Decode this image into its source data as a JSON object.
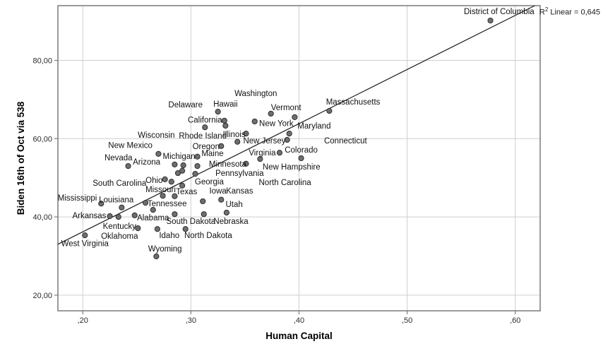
{
  "chart_data": {
    "type": "scatter",
    "title": "",
    "xlabel": "Human Capital",
    "ylabel": "Biden 16th of Oct via 538",
    "xlim": [
      0.177,
      0.623
    ],
    "ylim": [
      16.0,
      94.0
    ],
    "grid": true,
    "legend": "none",
    "x_ticks": {
      "values": [
        0.2,
        0.3,
        0.4,
        0.5,
        0.6
      ],
      "labels": [
        ",20",
        ",30",
        ",40",
        ",50",
        ",60"
      ]
    },
    "y_ticks": {
      "values": [
        20,
        40,
        60,
        80
      ],
      "labels": [
        "20,00",
        "40,00",
        "60,00",
        "80,00"
      ]
    },
    "r2": {
      "prefix": "R",
      "sup": "2",
      "rest": " Linear = 0,645"
    },
    "fit_line": {
      "x1": 0.177,
      "y1": 33.0,
      "x2": 0.618,
      "y2": 94.0
    },
    "points": [
      [
        0.577,
        90.2
      ],
      [
        0.428,
        67.1
      ],
      [
        0.325,
        66.9
      ],
      [
        0.374,
        66.4
      ],
      [
        0.396,
        65.5
      ],
      [
        0.331,
        64.6
      ],
      [
        0.359,
        64.4
      ],
      [
        0.332,
        63.3
      ],
      [
        0.313,
        62.9
      ],
      [
        0.351,
        61.3
      ],
      [
        0.391,
        61.3
      ],
      [
        0.389,
        59.7
      ],
      [
        0.343,
        59.2
      ],
      [
        0.328,
        58.1
      ],
      [
        0.27,
        56.1
      ],
      [
        0.306,
        55.4
      ],
      [
        0.382,
        56.4
      ],
      [
        0.364,
        54.8
      ],
      [
        0.402,
        55.0
      ],
      [
        0.351,
        53.6
      ],
      [
        0.242,
        53.0
      ],
      [
        0.285,
        53.4
      ],
      [
        0.293,
        53.2
      ],
      [
        0.306,
        53.0
      ],
      [
        0.288,
        51.2
      ],
      [
        0.292,
        51.8
      ],
      [
        0.304,
        51.0
      ],
      [
        0.276,
        49.6
      ],
      [
        0.282,
        49.0
      ],
      [
        0.292,
        48.0
      ],
      [
        0.274,
        45.4
      ],
      [
        0.285,
        45.3
      ],
      [
        0.311,
        44.0
      ],
      [
        0.328,
        44.4
      ],
      [
        0.258,
        43.6
      ],
      [
        0.265,
        41.8
      ],
      [
        0.217,
        43.4
      ],
      [
        0.236,
        42.4
      ],
      [
        0.225,
        40.2
      ],
      [
        0.233,
        40.0
      ],
      [
        0.248,
        40.4
      ],
      [
        0.285,
        40.7
      ],
      [
        0.312,
        40.7
      ],
      [
        0.333,
        41.1
      ],
      [
        0.251,
        37.1
      ],
      [
        0.269,
        36.9
      ],
      [
        0.295,
        36.9
      ],
      [
        0.202,
        35.3
      ],
      [
        0.268,
        29.9
      ]
    ],
    "state_labels": [
      {
        "text": "District of Columbia",
        "x": 0.585,
        "y": 92.6
      },
      {
        "text": "Massachusetts",
        "x": 0.45,
        "y": 69.4
      },
      {
        "text": "Washington",
        "x": 0.36,
        "y": 71.6
      },
      {
        "text": "Delaware",
        "x": 0.295,
        "y": 68.7
      },
      {
        "text": "Hawaii",
        "x": 0.332,
        "y": 68.9
      },
      {
        "text": "Vermont",
        "x": 0.388,
        "y": 68.0
      },
      {
        "text": "New York",
        "x": 0.379,
        "y": 63.9
      },
      {
        "text": "California",
        "x": 0.313,
        "y": 64.8
      },
      {
        "text": "Maryland",
        "x": 0.414,
        "y": 63.3
      },
      {
        "text": "Wisconsin",
        "x": 0.268,
        "y": 61.0
      },
      {
        "text": "Rhode Island",
        "x": 0.311,
        "y": 60.8
      },
      {
        "text": "Illinois",
        "x": 0.34,
        "y": 61.1
      },
      {
        "text": "New Jersey",
        "x": 0.368,
        "y": 59.5
      },
      {
        "text": "Connecticut",
        "x": 0.443,
        "y": 59.5
      },
      {
        "text": "New Mexico",
        "x": 0.244,
        "y": 58.3
      },
      {
        "text": "Oregon",
        "x": 0.314,
        "y": 58.1
      },
      {
        "text": "Virginia",
        "x": 0.366,
        "y": 56.4
      },
      {
        "text": "Colorado",
        "x": 0.402,
        "y": 57.2
      },
      {
        "text": "Nevada",
        "x": 0.233,
        "y": 55.2
      },
      {
        "text": "Arizona",
        "x": 0.259,
        "y": 54.1
      },
      {
        "text": "Michigan",
        "x": 0.289,
        "y": 55.5
      },
      {
        "text": "Maine",
        "x": 0.32,
        "y": 56.3
      },
      {
        "text": "Minnesota",
        "x": 0.334,
        "y": 53.6
      },
      {
        "text": "New Hampshire",
        "x": 0.393,
        "y": 52.8
      },
      {
        "text": "Pennsylvania",
        "x": 0.345,
        "y": 51.2
      },
      {
        "text": "North Carolina",
        "x": 0.387,
        "y": 48.9
      },
      {
        "text": "South Carolina",
        "x": 0.234,
        "y": 48.7
      },
      {
        "text": "Ohio",
        "x": 0.266,
        "y": 49.4
      },
      {
        "text": "Georgia",
        "x": 0.317,
        "y": 49.0
      },
      {
        "text": "Missouri",
        "x": 0.272,
        "y": 47.1
      },
      {
        "text": "Texas",
        "x": 0.296,
        "y": 46.5
      },
      {
        "text": "Iowa",
        "x": 0.325,
        "y": 46.7
      },
      {
        "text": "Kansas",
        "x": 0.345,
        "y": 46.7
      },
      {
        "text": "Mississippi",
        "x": 0.195,
        "y": 44.9
      },
      {
        "text": "Louisiana",
        "x": 0.231,
        "y": 44.4
      },
      {
        "text": "Tennessee",
        "x": 0.278,
        "y": 43.4
      },
      {
        "text": "Utah",
        "x": 0.34,
        "y": 43.3
      },
      {
        "text": "Arkansas",
        "x": 0.206,
        "y": 40.4
      },
      {
        "text": "Alabama",
        "x": 0.265,
        "y": 39.8
      },
      {
        "text": "South Dakota",
        "x": 0.3,
        "y": 38.9
      },
      {
        "text": "Nebraska",
        "x": 0.337,
        "y": 38.9
      },
      {
        "text": "Kentucky",
        "x": 0.234,
        "y": 37.7
      },
      {
        "text": "Oklahoma",
        "x": 0.234,
        "y": 35.1
      },
      {
        "text": "Idaho",
        "x": 0.28,
        "y": 35.3
      },
      {
        "text": "North Dakota",
        "x": 0.316,
        "y": 35.3
      },
      {
        "text": "West Virginia",
        "x": 0.202,
        "y": 33.2
      },
      {
        "text": "Wyoming",
        "x": 0.276,
        "y": 31.9
      }
    ]
  },
  "colors": {
    "background": "#ffffff",
    "point_fill": "#6e6e6e",
    "point_stroke": "#2f2f2f",
    "grid": "#cfcfcf",
    "frame": "#7a7a7a",
    "fit_line": "#1a1a1a",
    "tick_text": "#2b2b2b",
    "label_text": "#111111"
  }
}
